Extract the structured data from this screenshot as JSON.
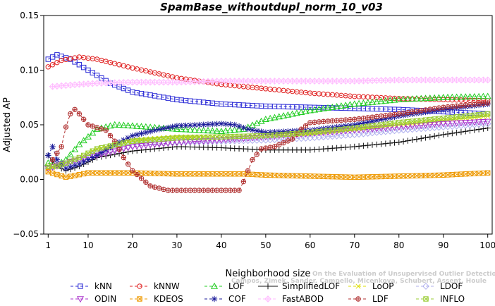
{
  "chart_data": {
    "type": "line",
    "title": "SpamBase_withoutdupl_norm_10_v03",
    "xlabel": "Neighborhood size",
    "ylabel": "Adjusted AP",
    "xlim": [
      0,
      101
    ],
    "ylim": [
      -0.05,
      0.15
    ],
    "xticks": [
      1,
      10,
      20,
      30,
      40,
      50,
      60,
      70,
      80,
      90,
      100
    ],
    "yticks": [
      -0.05,
      0.0,
      0.05,
      0.1,
      0.15
    ],
    "ytick_labels": [
      "−0.05",
      "0.00",
      "0.05",
      "0.10",
      "0.15"
    ],
    "grid": false,
    "legend_position": "bottom",
    "watermark": [
      "Campos, Zimek, Sander, Campello, Micenkova, Schubert, Assent, Houle",
      "On the Evaluation of Unsupervised Outlier Detection. DAMI, 2015."
    ],
    "series": [
      {
        "name": "kNN",
        "color": "#2b2bd6",
        "marker": "square",
        "dash": "4,3",
        "points": [
          [
            1,
            0.11
          ],
          [
            3,
            0.114
          ],
          [
            6,
            0.11
          ],
          [
            10,
            0.1
          ],
          [
            15,
            0.088
          ],
          [
            20,
            0.08
          ],
          [
            30,
            0.073
          ],
          [
            40,
            0.069
          ],
          [
            50,
            0.067
          ],
          [
            60,
            0.066
          ],
          [
            70,
            0.065
          ],
          [
            80,
            0.064
          ],
          [
            90,
            0.062
          ],
          [
            100,
            0.06
          ]
        ]
      },
      {
        "name": "kNNW",
        "color": "#e02020",
        "marker": "circle",
        "dash": "4,3",
        "points": [
          [
            1,
            0.103
          ],
          [
            4,
            0.109
          ],
          [
            8,
            0.112
          ],
          [
            12,
            0.11
          ],
          [
            20,
            0.102
          ],
          [
            30,
            0.093
          ],
          [
            40,
            0.087
          ],
          [
            50,
            0.083
          ],
          [
            60,
            0.079
          ],
          [
            70,
            0.076
          ],
          [
            80,
            0.074
          ],
          [
            90,
            0.073
          ],
          [
            100,
            0.072
          ]
        ]
      },
      {
        "name": "LOF",
        "color": "#22cc22",
        "marker": "triangle-up",
        "dash": "4,3",
        "points": [
          [
            1,
            0.015
          ],
          [
            3,
            0.013
          ],
          [
            5,
            0.018
          ],
          [
            8,
            0.032
          ],
          [
            12,
            0.046
          ],
          [
            16,
            0.05
          ],
          [
            20,
            0.049
          ],
          [
            30,
            0.046
          ],
          [
            40,
            0.044
          ],
          [
            45,
            0.046
          ],
          [
            50,
            0.055
          ],
          [
            60,
            0.063
          ],
          [
            70,
            0.069
          ],
          [
            80,
            0.073
          ],
          [
            90,
            0.075
          ],
          [
            100,
            0.076
          ]
        ]
      },
      {
        "name": "SimplifiedLOF",
        "color": "#111111",
        "marker": "plus",
        "dash": "none",
        "points": [
          [
            1,
            0.022
          ],
          [
            3,
            0.012
          ],
          [
            5,
            0.008
          ],
          [
            8,
            0.012
          ],
          [
            12,
            0.02
          ],
          [
            20,
            0.026
          ],
          [
            30,
            0.03
          ],
          [
            40,
            0.029
          ],
          [
            50,
            0.027
          ],
          [
            60,
            0.027
          ],
          [
            70,
            0.03
          ],
          [
            80,
            0.034
          ],
          [
            90,
            0.041
          ],
          [
            100,
            0.047
          ]
        ]
      },
      {
        "name": "LoOP",
        "color": "#dddd00",
        "marker": "x",
        "dash": "4,3",
        "points": [
          [
            1,
            0.01
          ],
          [
            3,
            0.012
          ],
          [
            5,
            0.015
          ],
          [
            8,
            0.02
          ],
          [
            12,
            0.027
          ],
          [
            20,
            0.036
          ],
          [
            30,
            0.039
          ],
          [
            40,
            0.039
          ],
          [
            50,
            0.04
          ],
          [
            60,
            0.042
          ],
          [
            70,
            0.046
          ],
          [
            80,
            0.05
          ],
          [
            90,
            0.054
          ],
          [
            100,
            0.058
          ]
        ]
      },
      {
        "name": "LDOF",
        "color": "#b0b0ee",
        "marker": "diamond",
        "dash": "4,3",
        "points": [
          [
            1,
            0.01
          ],
          [
            3,
            0.012
          ],
          [
            5,
            0.014
          ],
          [
            8,
            0.018
          ],
          [
            12,
            0.024
          ],
          [
            20,
            0.031
          ],
          [
            30,
            0.034
          ],
          [
            40,
            0.035
          ],
          [
            50,
            0.036
          ],
          [
            60,
            0.038
          ],
          [
            70,
            0.041
          ],
          [
            80,
            0.045
          ],
          [
            90,
            0.048
          ],
          [
            100,
            0.051
          ]
        ]
      },
      {
        "name": "ODIN",
        "color": "#aa33cc",
        "marker": "triangle-down",
        "dash": "4,3",
        "points": [
          [
            1,
            0.01
          ],
          [
            3,
            0.013
          ],
          [
            5,
            0.015
          ],
          [
            8,
            0.018
          ],
          [
            12,
            0.022
          ],
          [
            20,
            0.03
          ],
          [
            30,
            0.034
          ],
          [
            40,
            0.036
          ],
          [
            50,
            0.039
          ],
          [
            60,
            0.042
          ],
          [
            70,
            0.045
          ],
          [
            80,
            0.048
          ],
          [
            90,
            0.051
          ],
          [
            100,
            0.053
          ]
        ]
      },
      {
        "name": "KDEOS",
        "color": "#ee9900",
        "marker": "square-x",
        "dash": "4,3",
        "points": [
          [
            1,
            0.007
          ],
          [
            5,
            0.002
          ],
          [
            10,
            0.006
          ],
          [
            20,
            0.006
          ],
          [
            30,
            0.005
          ],
          [
            40,
            0.005
          ],
          [
            45,
            0.005
          ],
          [
            50,
            0.004
          ],
          [
            60,
            0.003
          ],
          [
            70,
            0.002
          ],
          [
            80,
            0.003
          ],
          [
            90,
            0.004
          ],
          [
            100,
            0.006
          ]
        ]
      },
      {
        "name": "COF",
        "color": "#1a1a99",
        "marker": "asterisk",
        "dash": "4,3",
        "points": [
          [
            1,
            0.022
          ],
          [
            2,
            0.03
          ],
          [
            3,
            0.018
          ],
          [
            5,
            0.01
          ],
          [
            8,
            0.014
          ],
          [
            12,
            0.022
          ],
          [
            16,
            0.032
          ],
          [
            20,
            0.04
          ],
          [
            25,
            0.045
          ],
          [
            30,
            0.049
          ],
          [
            35,
            0.05
          ],
          [
            40,
            0.051
          ],
          [
            43,
            0.05
          ],
          [
            46,
            0.046
          ],
          [
            50,
            0.043
          ],
          [
            60,
            0.045
          ],
          [
            70,
            0.05
          ],
          [
            80,
            0.058
          ],
          [
            90,
            0.064
          ],
          [
            100,
            0.069
          ]
        ]
      },
      {
        "name": "FastABOD",
        "color": "#ffbbff",
        "marker": "diamond-plus",
        "dash": "4,3",
        "points": [
          [
            2,
            0.085
          ],
          [
            5,
            0.086
          ],
          [
            8,
            0.087
          ],
          [
            12,
            0.088
          ],
          [
            20,
            0.089
          ],
          [
            30,
            0.089
          ],
          [
            40,
            0.09
          ],
          [
            50,
            0.09
          ],
          [
            60,
            0.09
          ],
          [
            70,
            0.09
          ],
          [
            80,
            0.091
          ],
          [
            90,
            0.091
          ],
          [
            100,
            0.091
          ]
        ]
      },
      {
        "name": "LDF",
        "color": "#b03030",
        "marker": "circle-plus",
        "dash": "4,3",
        "points": [
          [
            2,
            0.018
          ],
          [
            4,
            0.03
          ],
          [
            5,
            0.048
          ],
          [
            6,
            0.06
          ],
          [
            7,
            0.064
          ],
          [
            8,
            0.06
          ],
          [
            10,
            0.05
          ],
          [
            14,
            0.045
          ],
          [
            16,
            0.035
          ],
          [
            18,
            0.02
          ],
          [
            20,
            0.008
          ],
          [
            24,
            -0.006
          ],
          [
            28,
            -0.01
          ],
          [
            34,
            -0.01
          ],
          [
            40,
            -0.01
          ],
          [
            44,
            -0.01
          ],
          [
            45,
            -0.002
          ],
          [
            47,
            0.018
          ],
          [
            49,
            0.028
          ],
          [
            52,
            0.03
          ],
          [
            56,
            0.037
          ],
          [
            58,
            0.046
          ],
          [
            60,
            0.052
          ],
          [
            63,
            0.053
          ],
          [
            70,
            0.055
          ],
          [
            80,
            0.06
          ],
          [
            90,
            0.066
          ],
          [
            100,
            0.07
          ]
        ]
      },
      {
        "name": "INFLO",
        "color": "#99cc33",
        "marker": "square-x",
        "dash": "4,3",
        "points": [
          [
            1,
            0.012
          ],
          [
            3,
            0.012
          ],
          [
            5,
            0.015
          ],
          [
            8,
            0.02
          ],
          [
            12,
            0.028
          ],
          [
            20,
            0.035
          ],
          [
            30,
            0.038
          ],
          [
            40,
            0.039
          ],
          [
            50,
            0.04
          ],
          [
            60,
            0.043
          ],
          [
            70,
            0.047
          ],
          [
            80,
            0.052
          ],
          [
            90,
            0.056
          ],
          [
            100,
            0.06
          ]
        ]
      }
    ],
    "legend_order": [
      "kNN",
      "kNNW",
      "LOF",
      "SimplifiedLOF",
      "LoOP",
      "LDOF",
      "ODIN",
      "KDEOS",
      "COF",
      "FastABOD",
      "LDF",
      "INFLO"
    ]
  }
}
